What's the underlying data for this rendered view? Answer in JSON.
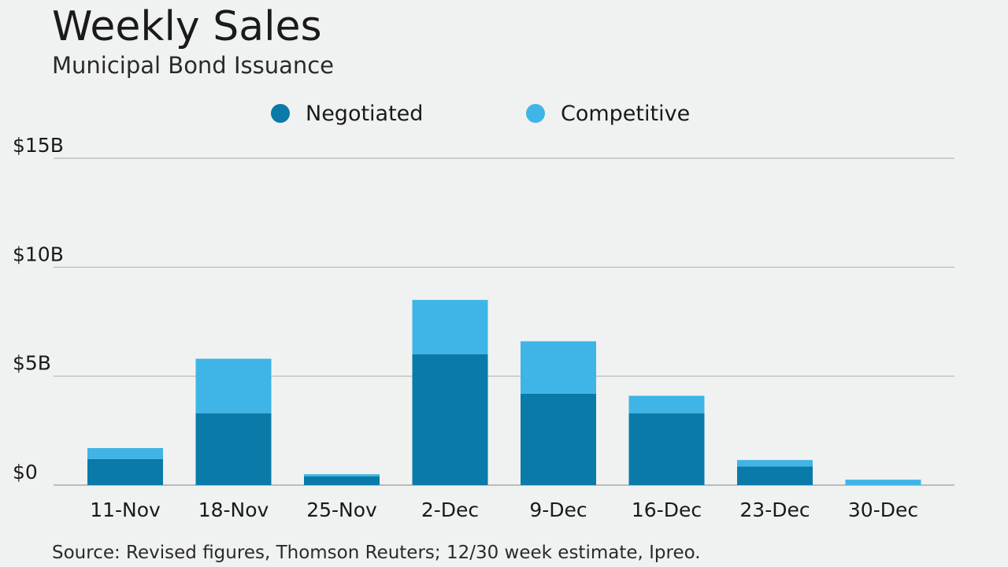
{
  "header": {
    "title": "Weekly Sales",
    "subtitle": "Municipal Bond Issuance"
  },
  "legend": [
    {
      "label": "Negotiated",
      "color": "#0a7aa8"
    },
    {
      "label": "Competitive",
      "color": "#3fb4e6"
    }
  ],
  "source": "Source: Revised figures, Thomson Reuters; 12/30 week estimate, Ipreo.",
  "chart_data": {
    "type": "bar",
    "stacked": true,
    "title": "Weekly Sales",
    "subtitle": "Municipal Bond Issuance",
    "categories": [
      "11-Nov",
      "18-Nov",
      "25-Nov",
      "2-Dec",
      "9-Dec",
      "16-Dec",
      "23-Dec",
      "30-Dec"
    ],
    "series": [
      {
        "name": "Negotiated",
        "color": "#0a7aa8",
        "values": [
          1.2,
          3.3,
          0.4,
          6.0,
          4.2,
          3.3,
          0.85,
          0.0
        ]
      },
      {
        "name": "Competitive",
        "color": "#3fb4e6",
        "values": [
          0.5,
          2.5,
          0.1,
          2.5,
          2.4,
          0.8,
          0.3,
          0.25
        ]
      }
    ],
    "yticks": [
      {
        "value": 0,
        "label": "$0"
      },
      {
        "value": 5,
        "label": "$5B"
      },
      {
        "value": 10,
        "label": "$10B"
      },
      {
        "value": 15,
        "label": "$15B"
      }
    ],
    "ylim": [
      0,
      15
    ],
    "grid": true,
    "legend_position": "top-center"
  }
}
